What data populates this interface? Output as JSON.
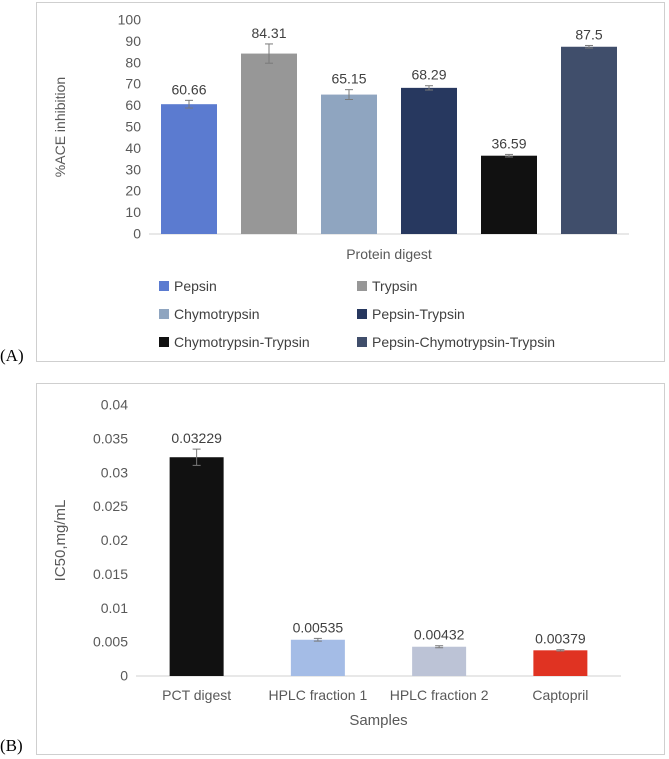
{
  "panel_labels": {
    "a": "(A)",
    "b": "(B)"
  },
  "chart_data": [
    {
      "type": "bar",
      "id": "A",
      "title": "",
      "categories": [
        "Pepsin",
        "Trypsin",
        "Chymotrypsin",
        "Pepsin-Trypsin",
        "Chymotrypsin-Trypsin",
        "Pepsin-Chymotrypsin-Trypsin"
      ],
      "values": [
        60.66,
        84.31,
        65.15,
        68.29,
        36.59,
        87.5
      ],
      "value_labels": [
        "60.66",
        "84.31",
        "65.15",
        "68.29",
        "36.59",
        "87.5"
      ],
      "errors": [
        1.8,
        4.5,
        2.3,
        1.0,
        0.6,
        0.6
      ],
      "colors": [
        "#5b7bd0",
        "#979797",
        "#8fa5c0",
        "#27385f",
        "#111111",
        "#404e6b"
      ],
      "xlabel": "Protein digest",
      "ylabel": "%ACE inhibition",
      "ylim": [
        0,
        100
      ],
      "yticks": [
        0,
        10,
        20,
        30,
        40,
        50,
        60,
        70,
        80,
        90,
        100
      ],
      "ytick_labels": [
        "0",
        "10",
        "20",
        "30",
        "40",
        "50",
        "60",
        "70",
        "80",
        "90",
        "100"
      ],
      "legend": "bottom",
      "grid": false
    },
    {
      "type": "bar",
      "id": "B",
      "title": "",
      "categories": [
        "PCT digest",
        "HPLC fraction 1",
        "HPLC fraction 2",
        "Captopril"
      ],
      "values": [
        0.03229,
        0.00535,
        0.00432,
        0.00379
      ],
      "value_labels": [
        "0.03229",
        "0.00535",
        "0.00432",
        "0.00379"
      ],
      "errors": [
        0.0012,
        0.0002,
        0.00015,
        0.0001
      ],
      "colors": [
        "#111111",
        "#a4bce6",
        "#bcc3d6",
        "#e03322"
      ],
      "xlabel": "Samples",
      "ylabel": "IC50,mg/mL",
      "ylim": [
        0,
        0.04
      ],
      "yticks": [
        0,
        0.005,
        0.01,
        0.015,
        0.02,
        0.025,
        0.03,
        0.035,
        0.04
      ],
      "ytick_labels": [
        "0",
        "0.005",
        "0.01",
        "0.015",
        "0.02",
        "0.025",
        "0.03",
        "0.035",
        "0.04"
      ],
      "legend": "none",
      "grid": false
    }
  ]
}
